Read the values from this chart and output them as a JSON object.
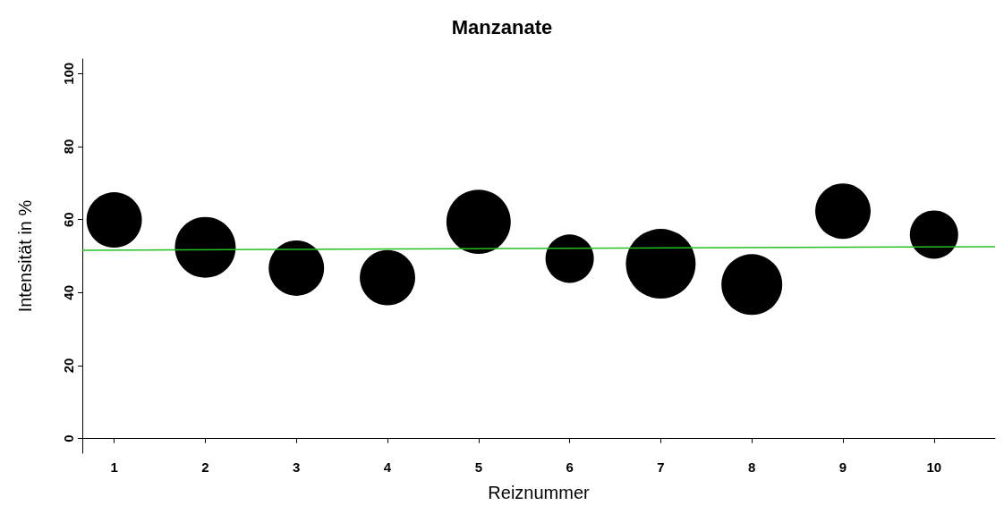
{
  "chart_data": {
    "type": "bubble",
    "title": "Manzanate",
    "xlabel": "Reiznummer",
    "ylabel": "Intensität in %",
    "xlim": [
      0.65,
      10.67
    ],
    "xticks": [
      1,
      2,
      3,
      4,
      5,
      6,
      7,
      8,
      9,
      10
    ],
    "ylim": [
      -4,
      104
    ],
    "yticks": [
      0,
      20,
      40,
      60,
      80,
      100
    ],
    "grid": false,
    "series": [
      {
        "color": "#000000",
        "marker": "circle",
        "x": [
          1,
          2,
          3,
          4,
          5,
          6,
          7,
          8,
          9,
          10
        ],
        "values": [
          59.9,
          52.4,
          46.7,
          44.1,
          59.4,
          49.3,
          47.9,
          42.2,
          62.3,
          55.9
        ],
        "sizes": [
          0.63,
          0.76,
          0.63,
          0.63,
          0.85,
          0.48,
          1,
          0.76,
          0.63,
          0.48
        ]
      },
      {
        "type": "line",
        "color": "#22c022",
        "x": [
          0.65,
          10.67
        ],
        "values": [
          51.6,
          52.6
        ],
        "line_style": "solid"
      }
    ]
  }
}
